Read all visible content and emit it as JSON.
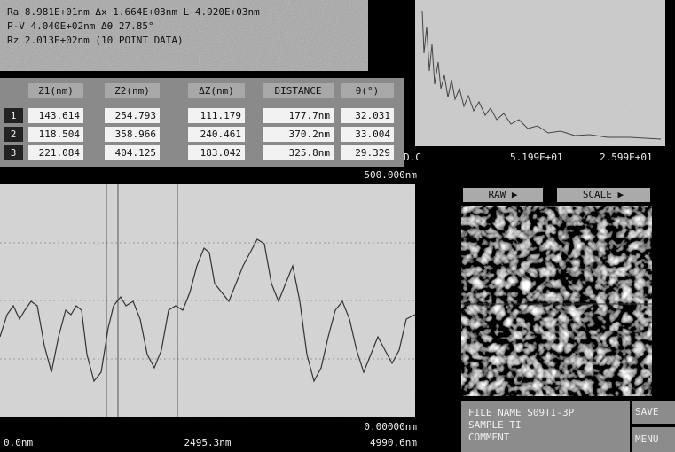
{
  "stats": {
    "lines": [
      "Ra   8.981E+01nm  Δx 1.664E+03nm  L 4.920E+03nm",
      "P-V  4.040E+02nm  Δθ 27.85°",
      "Rz   2.013E+02nm (10 POINT DATA)"
    ]
  },
  "table": {
    "headers": [
      "Z1(nm)",
      "Z2(nm)",
      "ΔZ(nm)",
      "DISTANCE",
      "θ(°)"
    ],
    "rows": [
      [
        "1",
        "143.614",
        "254.793",
        "111.179",
        "177.7nm",
        "32.031"
      ],
      [
        "2",
        "118.504",
        "358.966",
        "240.461",
        "370.2nm",
        "33.004"
      ],
      [
        "3",
        "221.084",
        "404.125",
        "183.042",
        "325.8nm",
        "29.329"
      ]
    ]
  },
  "spectrum": {
    "labels": [
      "D.C",
      "5.199E+01",
      "2.599E+01"
    ]
  },
  "profile": {
    "y_max": "500.000nm",
    "y_min": "0.00000nm",
    "x_labels": [
      "0.0nm",
      "2495.3nm",
      "4990.6nm"
    ]
  },
  "image_buttons": [
    "RAW ▶",
    "SCALE ▶"
  ],
  "file_info": {
    "lines": [
      "FILE NAME S09TI-3P",
      "SAMPLE    TI",
      "COMMENT"
    ]
  },
  "side_buttons": [
    "SAVE",
    "MENU"
  ]
}
